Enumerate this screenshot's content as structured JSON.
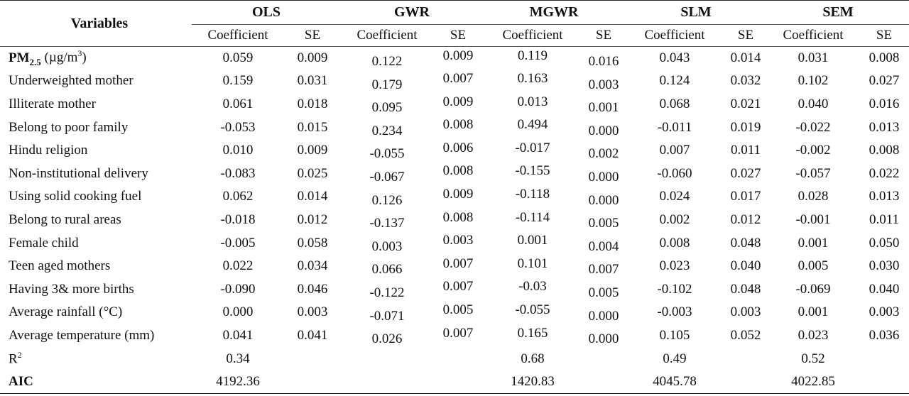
{
  "headers": {
    "variables": "Variables",
    "models": [
      "OLS",
      "GWR",
      "MGWR",
      "SLM",
      "SEM"
    ],
    "coef": "Coefficient",
    "se": "SE"
  },
  "pm_label": {
    "base": "PM",
    "sub": "2.5",
    "unit": "(µg/m",
    "sup": "3",
    "close": ")"
  },
  "r2_label": {
    "base": "R",
    "sup": "2"
  },
  "rows": [
    {
      "label": "",
      "vals": [
        "0.059",
        "0.009",
        "0.122",
        "0.009",
        "0.119",
        "0.016",
        "0.043",
        "0.014",
        "0.031",
        "0.008"
      ]
    },
    {
      "label": "Underweighted mother",
      "vals": [
        "0.159",
        "0.031",
        "0.179",
        "0.007",
        "0.163",
        "0.003",
        "0.124",
        "0.032",
        "0.102",
        "0.027"
      ]
    },
    {
      "label": "Illiterate mother",
      "vals": [
        "0.061",
        "0.018",
        "0.095",
        "0.009",
        "0.013",
        "0.001",
        "0.068",
        "0.021",
        "0.040",
        "0.016"
      ]
    },
    {
      "label": "Belong to poor family",
      "vals": [
        "-0.053",
        "0.015",
        "0.234",
        "0.008",
        "0.494",
        "0.000",
        "-0.011",
        "0.019",
        "-0.022",
        "0.013"
      ]
    },
    {
      "label": "Hindu religion",
      "vals": [
        "0.010",
        "0.009",
        "-0.055",
        "0.006",
        "-0.017",
        "0.002",
        "0.007",
        "0.011",
        "-0.002",
        "0.008"
      ]
    },
    {
      "label": "Non-institutional delivery",
      "vals": [
        "-0.083",
        "0.025",
        "-0.067",
        "0.008",
        "-0.155",
        "0.000",
        "-0.060",
        "0.027",
        "-0.057",
        "0.022"
      ]
    },
    {
      "label": "Using solid cooking fuel",
      "vals": [
        "0.062",
        "0.014",
        "0.126",
        "0.009",
        "-0.118",
        "0.000",
        "0.024",
        "0.017",
        "0.028",
        "0.013"
      ]
    },
    {
      "label": "Belong to rural areas",
      "vals": [
        "-0.018",
        "0.012",
        "-0.137",
        "0.008",
        "-0.114",
        "0.005",
        "0.002",
        "0.012",
        "-0.001",
        "0.011"
      ]
    },
    {
      "label": "Female child",
      "vals": [
        "-0.005",
        "0.058",
        "0.003",
        "0.003",
        "0.001",
        "0.004",
        "0.008",
        "0.048",
        "0.001",
        "0.050"
      ]
    },
    {
      "label": "Teen aged mothers",
      "vals": [
        "0.022",
        "0.034",
        "0.066",
        "0.007",
        "0.101",
        "0.007",
        "0.023",
        "0.040",
        "0.005",
        "0.030"
      ]
    },
    {
      "label": "Having 3& more births",
      "vals": [
        "-0.090",
        "0.046",
        "-0.122",
        "0.007",
        "-0.03",
        "0.005",
        "-0.102",
        "0.048",
        "-0.069",
        "0.040"
      ]
    },
    {
      "label": "Average rainfall (°C)",
      "vals": [
        "0.000",
        "0.003",
        "-0.071",
        "0.005",
        "-0.055",
        "0.000",
        "-0.003",
        "0.003",
        "0.001",
        "0.003"
      ]
    },
    {
      "label": "Average temperature (mm)",
      "vals": [
        "0.041",
        "0.041",
        "0.026",
        "0.007",
        "0.165",
        "0.000",
        "0.105",
        "0.052",
        "0.023",
        "0.036"
      ]
    }
  ],
  "r2": {
    "ols": "0.34",
    "mgwr": "0.68",
    "slm": "0.49",
    "sem": "0.52"
  },
  "aic": {
    "label": "AIC",
    "ols": "4192.36",
    "mgwr": "1420.83",
    "slm": "4045.78",
    "sem": "4022.85"
  }
}
